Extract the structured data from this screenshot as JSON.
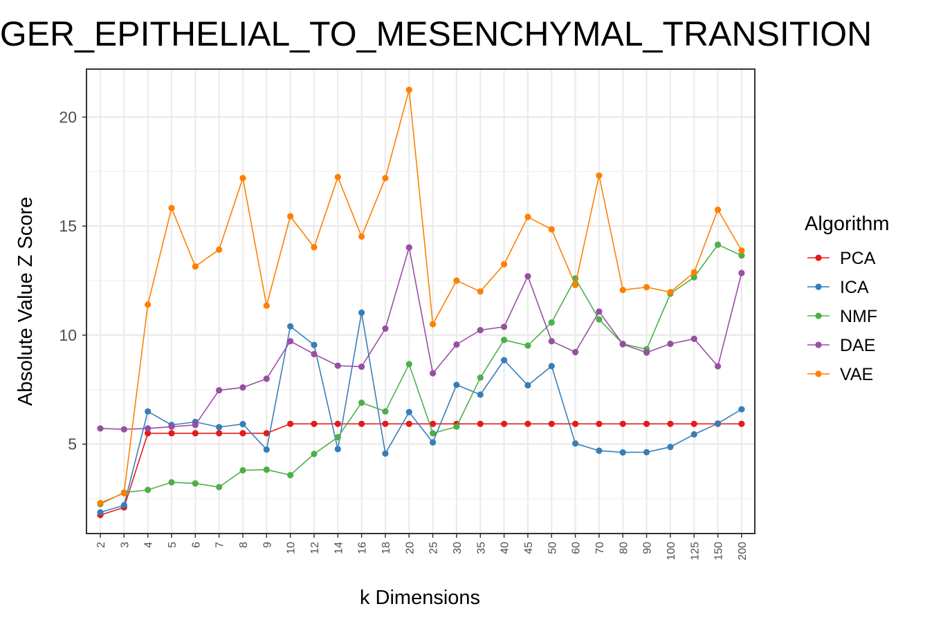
{
  "chart_data": {
    "type": "line",
    "title": "GER_EPITHELIAL_TO_MESENCHYMAL_TRANSITION",
    "xlabel": "k Dimensions",
    "ylabel": "Absolute Value Z Score",
    "categories": [
      "2",
      "3",
      "4",
      "5",
      "6",
      "7",
      "8",
      "9",
      "10",
      "12",
      "14",
      "16",
      "18",
      "20",
      "25",
      "30",
      "35",
      "40",
      "45",
      "50",
      "60",
      "70",
      "80",
      "90",
      "100",
      "125",
      "150",
      "200"
    ],
    "y_ticks": [
      5,
      10,
      15,
      20
    ],
    "ylim": [
      0.9,
      22.2
    ],
    "grid": true,
    "legend": {
      "title": "Algorithm",
      "position": "right"
    },
    "series": [
      {
        "name": "PCA",
        "color": "#e41a1c",
        "values": [
          1.75,
          2.1,
          5.5,
          5.5,
          5.5,
          5.5,
          5.5,
          5.5,
          5.93,
          5.93,
          5.93,
          5.93,
          5.93,
          5.93,
          5.93,
          5.93,
          5.93,
          5.93,
          5.93,
          5.93,
          5.93,
          5.93,
          5.93,
          5.93,
          5.93,
          5.93,
          5.93,
          5.93
        ]
      },
      {
        "name": "ICA",
        "color": "#377eb8",
        "values": [
          1.87,
          2.2,
          6.5,
          5.88,
          6.02,
          5.78,
          5.92,
          4.75,
          10.4,
          9.55,
          4.77,
          11.03,
          4.57,
          6.47,
          5.08,
          7.72,
          7.27,
          8.85,
          7.7,
          8.58,
          5.03,
          4.7,
          4.62,
          4.63,
          4.87,
          5.45,
          5.95,
          6.6
        ]
      },
      {
        "name": "NMF",
        "color": "#4daf4a",
        "values": [
          2.25,
          2.78,
          2.9,
          3.25,
          3.2,
          3.03,
          3.8,
          3.83,
          3.58,
          4.55,
          5.32,
          6.9,
          6.5,
          8.67,
          5.5,
          5.8,
          8.05,
          9.78,
          9.52,
          10.58,
          12.6,
          10.72,
          9.6,
          9.35,
          11.9,
          12.65,
          14.15,
          13.65
        ]
      },
      {
        "name": "DAE",
        "color": "#984ea3",
        "values": [
          5.72,
          5.68,
          5.72,
          5.8,
          5.88,
          7.47,
          7.6,
          8.0,
          9.72,
          9.13,
          8.6,
          8.55,
          10.3,
          14.02,
          8.25,
          9.57,
          10.23,
          10.38,
          12.7,
          9.72,
          9.22,
          11.08,
          9.58,
          9.2,
          9.6,
          9.83,
          8.57,
          12.85
        ]
      },
      {
        "name": "VAE",
        "color": "#ff7f00",
        "values": [
          2.3,
          2.75,
          11.4,
          15.83,
          13.15,
          13.92,
          17.2,
          11.35,
          15.45,
          14.03,
          17.25,
          14.52,
          17.2,
          21.25,
          10.5,
          12.5,
          12.0,
          13.25,
          15.42,
          14.85,
          12.3,
          17.32,
          12.07,
          12.2,
          11.97,
          12.88,
          15.75,
          13.88
        ]
      }
    ]
  }
}
